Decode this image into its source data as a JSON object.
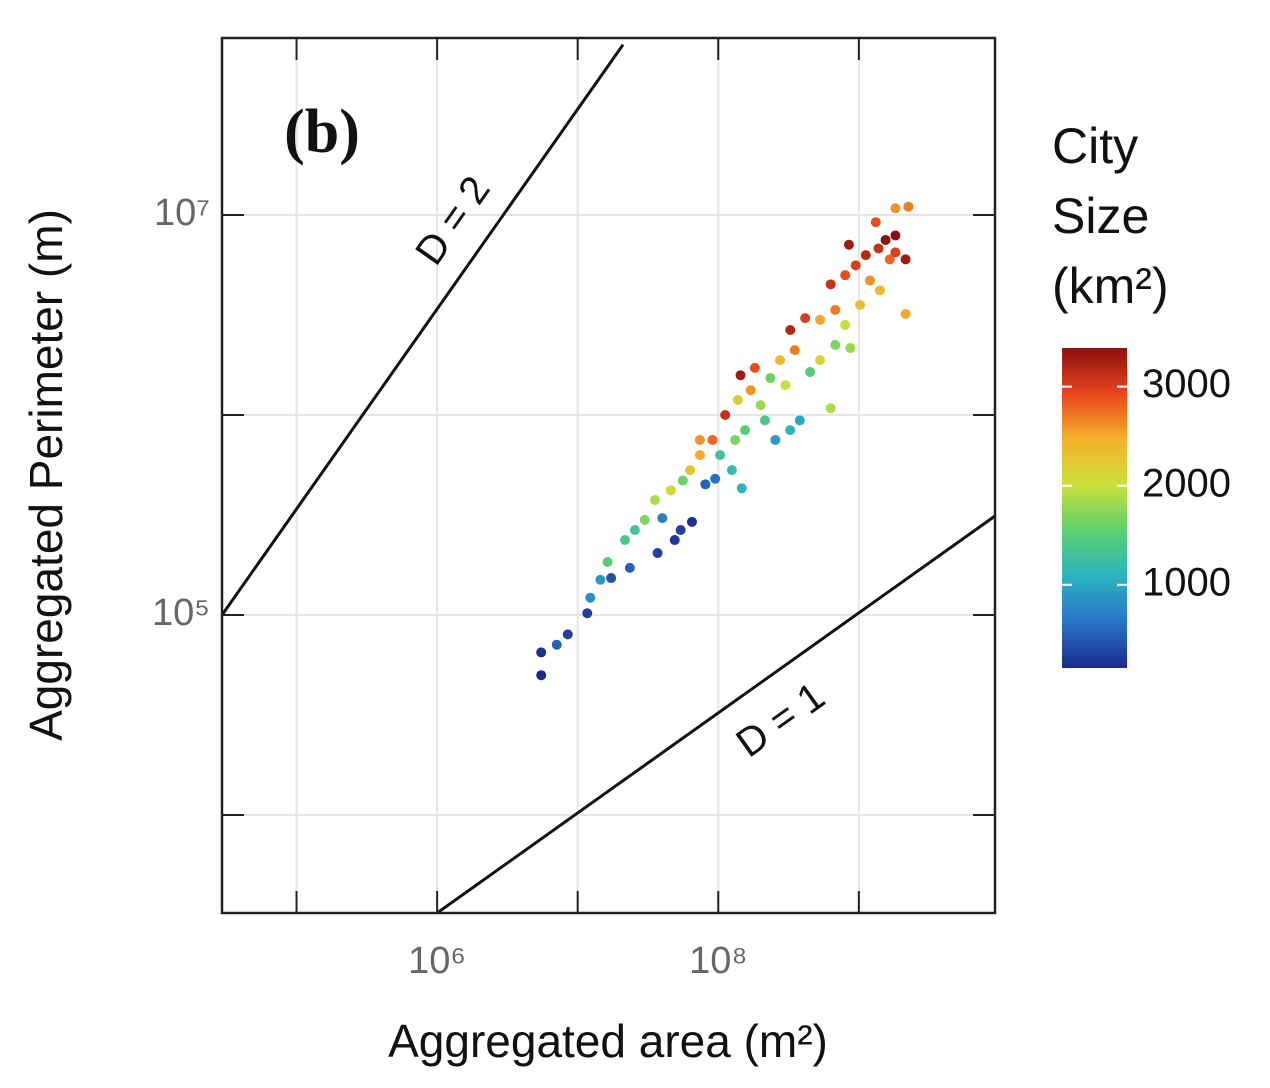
{
  "chart_data": {
    "type": "scatter",
    "panel_label": "(b)",
    "x_label": "Aggregated area (m²)",
    "y_label": "Aggregated Perimeter (m)",
    "xlog": true,
    "ylog": true,
    "grid": true,
    "xlim": [
      29500,
      9300000000
    ],
    "ylim": [
      3236,
      76700000
    ],
    "xticks": [
      {
        "value": 1000000,
        "label": "10⁶"
      },
      {
        "value": 100000000,
        "label": "10⁸"
      }
    ],
    "yticks": [
      {
        "value": 100000,
        "label": "10⁵"
      },
      {
        "value": 10000000,
        "label": "10⁷"
      }
    ],
    "xgrid": [
      100000,
      1000000,
      10000000,
      100000000,
      1000000000
    ],
    "ygrid": [
      10000,
      100000,
      1000000,
      10000000
    ],
    "lines": [
      {
        "name": "D = 2",
        "color": "#111111",
        "x": [
          29500,
          21000000
        ],
        "y": [
          100000,
          71000000
        ]
      },
      {
        "name": "D = 1",
        "color": "#111111",
        "x": [
          1000000,
          9300000000
        ],
        "y": [
          3236,
          312600
        ]
      }
    ],
    "colorbar": {
      "title": [
        "City",
        "Size",
        "(km²)"
      ],
      "lim": [
        160,
        3390
      ],
      "ticks": [
        1000,
        2000,
        3000
      ],
      "colormap": [
        "#1a2a8c",
        "#2a74c8",
        "#2bb3c0",
        "#5cd070",
        "#c8e03a",
        "#f5b12b",
        "#e8461c",
        "#8b1010"
      ]
    },
    "x": [
      5500000,
      5500000,
      7100000,
      8500000,
      11700000,
      12300000,
      14500000,
      17300000,
      16300000,
      23500000,
      21700000,
      25500000,
      30000000,
      37000000,
      40000000,
      35500000,
      49000000,
      54000000,
      65000000,
      46000000,
      56000000,
      63000000,
      81000000,
      95000000,
      74000000,
      91000000,
      103000000,
      125000000,
      147000000,
      132000000,
      155000000,
      112000000,
      138000000,
      170000000,
      200000000,
      215000000,
      255000000,
      325000000,
      380000000,
      630000000,
      144000000,
      182000000,
      235000000,
      300000000,
      275000000,
      350000000,
      450000000,
      530000000,
      680000000,
      870000000,
      325000000,
      415000000,
      530000000,
      680000000,
      800000000,
      1020000000,
      630000000,
      800000000,
      950000000,
      1200000000,
      1410000000,
      1120000000,
      1380000000,
      1660000000,
      850000000,
      1550000000,
      1820000000,
      2150000000,
      1320000000,
      1820000000,
      2250000000,
      1820000000,
      2150000000,
      74000000
    ],
    "y": [
      65000,
      50000,
      71000,
      80000,
      102000,
      122000,
      150000,
      153000,
      184000,
      172000,
      237000,
      266000,
      299000,
      204000,
      305000,
      376000,
      237000,
      266000,
      292000,
      420000,
      470000,
      530000,
      450000,
      480000,
      630000,
      750000,
      630000,
      530000,
      430000,
      750000,
      840000,
      1000000,
      1190000,
      1330000,
      1120000,
      940000,
      750000,
      840000,
      940000,
      1080000,
      1580000,
      1720000,
      1530000,
      1410000,
      1880000,
      2110000,
      1640000,
      1880000,
      2240000,
      2160000,
      2660000,
      3050000,
      2990000,
      3350000,
      2820000,
      3550000,
      4500000,
      5000000,
      5600000,
      4700000,
      4200000,
      6300000,
      6800000,
      6000000,
      7100000,
      7500000,
      6500000,
      6000000,
      9200000,
      7900000,
      11000000,
      10800000,
      3200000,
      750000
    ],
    "size": [
      200,
      150,
      500,
      300,
      300,
      800,
      900,
      400,
      1500,
      500,
      1400,
      1300,
      1700,
      300,
      700,
      1900,
      250,
      300,
      200,
      2100,
      1600,
      2300,
      500,
      600,
      2500,
      2800,
      1300,
      1200,
      1100,
      1700,
      1500,
      3100,
      2200,
      2600,
      1800,
      1400,
      900,
      1100,
      1000,
      1900,
      3300,
      2900,
      1600,
      2000,
      2400,
      2700,
      1500,
      2100,
      1700,
      1800,
      3200,
      3000,
      2500,
      2700,
      2000,
      2300,
      3100,
      2900,
      3000,
      2600,
      2400,
      3200,
      3100,
      2800,
      3300,
      3400,
      3000,
      3300,
      2900,
      3400,
      2700,
      2600,
      2500,
      2600
    ]
  }
}
